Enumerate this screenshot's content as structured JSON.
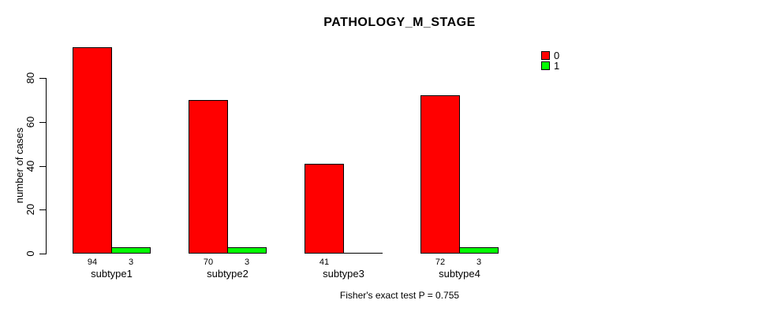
{
  "chart_data": {
    "type": "bar",
    "title": "PATHOLOGY_M_STAGE",
    "ylabel": "number of cases",
    "xlabel": "",
    "footnote": "Fisher's exact test P = 0.755",
    "categories": [
      "subtype1",
      "subtype2",
      "subtype3",
      "subtype4"
    ],
    "series": [
      {
        "name": "0",
        "color": "#ff0000",
        "values": [
          94,
          70,
          41,
          72
        ]
      },
      {
        "name": "1",
        "color": "#00ff00",
        "values": [
          3,
          3,
          0,
          3
        ]
      }
    ],
    "yticks": [
      0,
      20,
      40,
      60,
      80
    ],
    "ylim": [
      0,
      94
    ],
    "grid": false,
    "legend_position": "top-right",
    "bar_value_labels_shown": true,
    "colors": {
      "background": "#ffffff",
      "axis": "#000000",
      "text": "#000000"
    }
  }
}
